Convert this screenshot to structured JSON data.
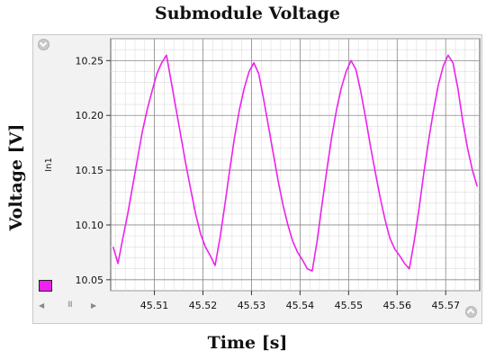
{
  "chart_data": {
    "type": "line",
    "title": "Submodule Voltage",
    "xlabel": "Time [s]",
    "ylabel": "Voltage [V]",
    "xlim": [
      45.501,
      45.577
    ],
    "ylim": [
      10.04,
      10.27
    ],
    "xticks": [
      45.51,
      45.52,
      45.53,
      45.54,
      45.55,
      45.56,
      45.57
    ],
    "yticks": [
      10.05,
      10.1,
      10.15,
      10.2,
      10.25
    ],
    "grid": true,
    "legend_position": "bottom-left",
    "series": [
      {
        "name": "In1",
        "color": "#ee22ee",
        "x": [
          45.5015,
          45.5025,
          45.5035,
          45.5045,
          45.5055,
          45.5065,
          45.5075,
          45.5085,
          45.5095,
          45.5105,
          45.5115,
          45.5125,
          45.5135,
          45.5145,
          45.5155,
          45.5165,
          45.5175,
          45.5185,
          45.5195,
          45.5205,
          45.5215,
          45.5225,
          45.5235,
          45.5245,
          45.5255,
          45.5265,
          45.5275,
          45.5285,
          45.5295,
          45.5305,
          45.5315,
          45.5325,
          45.5335,
          45.5345,
          45.5355,
          45.5365,
          45.5375,
          45.5385,
          45.5395,
          45.5405,
          45.5415,
          45.5425,
          45.5435,
          45.5445,
          45.5455,
          45.5465,
          45.5475,
          45.5485,
          45.5495,
          45.5505,
          45.5515,
          45.5525,
          45.5535,
          45.5545,
          45.5555,
          45.5565,
          45.5575,
          45.5585,
          45.5595,
          45.5605,
          45.5615,
          45.5625,
          45.5635,
          45.5645,
          45.5655,
          45.5665,
          45.5675,
          45.5685,
          45.5695,
          45.5705,
          45.5715,
          45.5725,
          45.5735,
          45.5745,
          45.5755,
          45.5765
        ],
        "y": [
          10.08,
          10.065,
          10.088,
          10.11,
          10.135,
          10.16,
          10.185,
          10.205,
          10.222,
          10.238,
          10.248,
          10.255,
          10.23,
          10.205,
          10.18,
          10.155,
          10.132,
          10.11,
          10.092,
          10.08,
          10.072,
          10.063,
          10.088,
          10.118,
          10.15,
          10.18,
          10.205,
          10.225,
          10.24,
          10.248,
          10.238,
          10.215,
          10.19,
          10.165,
          10.14,
          10.118,
          10.1,
          10.085,
          10.075,
          10.068,
          10.06,
          10.058,
          10.085,
          10.118,
          10.15,
          10.18,
          10.205,
          10.225,
          10.24,
          10.25,
          10.242,
          10.222,
          10.198,
          10.172,
          10.148,
          10.125,
          10.105,
          10.088,
          10.078,
          10.072,
          10.065,
          10.06,
          10.085,
          10.115,
          10.148,
          10.178,
          10.205,
          10.228,
          10.245,
          10.255,
          10.248,
          10.225,
          10.195,
          10.17,
          10.15,
          10.135
        ]
      }
    ]
  },
  "icons": {
    "collapse": "chevron-up-icon",
    "expand": "chevron-down-icon",
    "scroll_left": "arrow-left-icon",
    "scroll_right": "arrow-right-icon",
    "scroll_grip": "grip-icon",
    "scroll_left_glyph": "◀",
    "scroll_right_glyph": "▶",
    "scroll_grip_glyph": "III"
  }
}
